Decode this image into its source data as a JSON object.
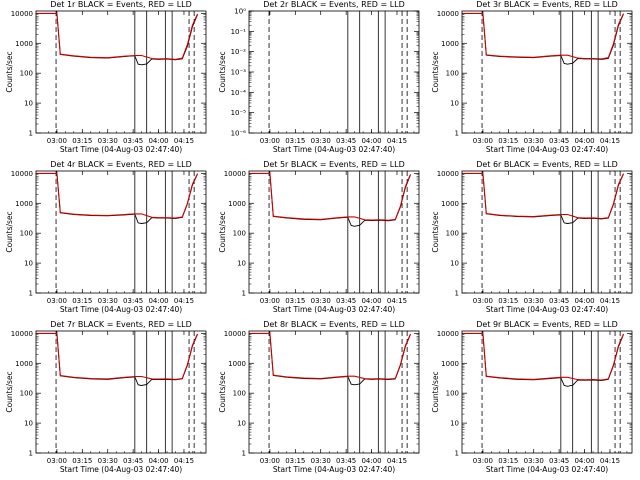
{
  "colors": {
    "events": "#000000",
    "lld": "#cc0000",
    "background": "#ffffff"
  },
  "chart_data": [
    {
      "type": "line",
      "title": "Det 1r BLACK = Events, RED = LLD",
      "xlabel": "Start Time (04-Aug-03 02:47:40)",
      "ylabel": "Counts/sec",
      "x_ticks": [
        "03:00",
        "03:15",
        "03:30",
        "03:45",
        "04:00",
        "04:15"
      ],
      "y_ticks": [
        "1",
        "10",
        "100",
        "1000",
        "10000"
      ],
      "y_scale": "log",
      "ylim": [
        1,
        12000
      ],
      "xlim": [
        "02:47:40",
        "04:28"
      ],
      "series": [
        {
          "name": "Events",
          "x": [
            "02:48",
            "03:00",
            "03:02",
            "03:10",
            "03:20",
            "03:30",
            "03:40",
            "03:46",
            "03:48",
            "03:50",
            "03:53",
            "03:56",
            "04:00",
            "04:05",
            "04:10",
            "04:14",
            "04:17",
            "04:20",
            "04:23"
          ],
          "y": [
            10000,
            10000,
            420,
            370,
            330,
            320,
            360,
            380,
            200,
            190,
            205,
            300,
            290,
            295,
            280,
            300,
            800,
            3500,
            9000
          ]
        },
        {
          "name": "LLD",
          "x": [
            "02:48",
            "03:00",
            "03:02",
            "03:10",
            "03:20",
            "03:30",
            "03:40",
            "03:46",
            "03:50",
            "03:56",
            "04:00",
            "04:05",
            "04:10",
            "04:14",
            "04:17",
            "04:20",
            "04:23"
          ],
          "y": [
            10000,
            10000,
            430,
            380,
            340,
            330,
            370,
            390,
            390,
            310,
            300,
            305,
            290,
            320,
            900,
            4000,
            9500
          ]
        }
      ]
    },
    {
      "type": "line",
      "title": "Det 2r BLACK = Events, RED = LLD",
      "xlabel": "Start Time (04-Aug-03 02:47:40)",
      "ylabel": "Counts/sec",
      "x_ticks": [
        "03:00",
        "03:15",
        "03:30",
        "03:45",
        "04:00",
        "04:15"
      ],
      "y_ticks": [
        "10⁰",
        "10⁻¹",
        "10⁻²",
        "10⁻³",
        "10⁻⁴",
        "10⁻⁵",
        "10⁻⁶"
      ],
      "y_scale": "log",
      "ylim": [
        1e-06,
        1
      ],
      "xlim": [
        "02:47:40",
        "04:28"
      ],
      "series": []
    },
    {
      "type": "line",
      "title": "Det 3r BLACK = Events, RED = LLD",
      "xlabel": "Start Time (04-Aug-03 02:47:40)",
      "ylabel": "Counts/sec",
      "x_ticks": [
        "03:00",
        "03:15",
        "03:30",
        "03:45",
        "04:00",
        "04:15"
      ],
      "y_ticks": [
        "1",
        "10",
        "100",
        "1000",
        "10000"
      ],
      "y_scale": "log",
      "ylim": [
        1,
        12000
      ],
      "xlim": [
        "02:47:40",
        "04:28"
      ],
      "series": [
        {
          "name": "Events",
          "x": [
            "02:48",
            "03:00",
            "03:02",
            "03:10",
            "03:20",
            "03:30",
            "03:40",
            "03:46",
            "03:48",
            "03:50",
            "03:53",
            "03:56",
            "04:00",
            "04:05",
            "04:10",
            "04:14",
            "04:17",
            "04:20",
            "04:23"
          ],
          "y": [
            10000,
            10000,
            400,
            360,
            340,
            330,
            370,
            390,
            210,
            200,
            215,
            310,
            300,
            300,
            290,
            310,
            850,
            3800,
            9500
          ]
        },
        {
          "name": "LLD",
          "x": [
            "02:48",
            "03:00",
            "03:02",
            "03:10",
            "03:20",
            "03:30",
            "03:40",
            "03:46",
            "03:50",
            "03:56",
            "04:00",
            "04:05",
            "04:10",
            "04:14",
            "04:17",
            "04:20",
            "04:23"
          ],
          "y": [
            10000,
            10000,
            410,
            370,
            350,
            340,
            380,
            400,
            400,
            320,
            310,
            310,
            300,
            330,
            950,
            4200,
            9800
          ]
        }
      ]
    },
    {
      "type": "line",
      "title": "Det 4r BLACK = Events, RED = LLD",
      "xlabel": "Start Time (04-Aug-03 02:47:40)",
      "ylabel": "Counts/sec",
      "x_ticks": [
        "03:00",
        "03:15",
        "03:30",
        "03:45",
        "04:00",
        "04:15"
      ],
      "y_ticks": [
        "1",
        "10",
        "100",
        "1000",
        "10000"
      ],
      "y_scale": "log",
      "ylim": [
        1,
        12000
      ],
      "xlim": [
        "02:47:40",
        "04:28"
      ],
      "series": [
        {
          "name": "Events",
          "x": [
            "02:48",
            "03:00",
            "03:02",
            "03:10",
            "03:20",
            "03:30",
            "03:40",
            "03:46",
            "03:48",
            "03:50",
            "03:53",
            "03:56",
            "04:00",
            "04:05",
            "04:10",
            "04:14",
            "04:17",
            "04:20",
            "04:23"
          ],
          "y": [
            10000,
            10000,
            480,
            420,
            390,
            380,
            410,
            430,
            220,
            210,
            225,
            330,
            320,
            320,
            310,
            340,
            950,
            4000,
            9500
          ]
        },
        {
          "name": "LLD",
          "x": [
            "02:48",
            "03:00",
            "03:02",
            "03:10",
            "03:20",
            "03:30",
            "03:40",
            "03:46",
            "03:50",
            "03:56",
            "04:00",
            "04:05",
            "04:10",
            "04:14",
            "04:17",
            "04:20",
            "04:23"
          ],
          "y": [
            10000,
            10000,
            490,
            430,
            400,
            390,
            420,
            440,
            440,
            340,
            330,
            330,
            320,
            350,
            1000,
            4300,
            9800
          ]
        }
      ]
    },
    {
      "type": "line",
      "title": "Det 5r BLACK = Events, RED = LLD",
      "xlabel": "Start Time (04-Aug-03 02:47:40)",
      "ylabel": "Counts/sec",
      "x_ticks": [
        "03:00",
        "03:15",
        "03:30",
        "03:45",
        "04:00",
        "04:15"
      ],
      "y_ticks": [
        "1",
        "10",
        "100",
        "1000",
        "10000"
      ],
      "y_scale": "log",
      "ylim": [
        1,
        12000
      ],
      "xlim": [
        "02:47:40",
        "04:28"
      ],
      "series": [
        {
          "name": "Events",
          "x": [
            "02:48",
            "03:00",
            "03:02",
            "03:10",
            "03:20",
            "03:30",
            "03:40",
            "03:46",
            "03:48",
            "03:50",
            "03:53",
            "03:56",
            "04:00",
            "04:05",
            "04:10",
            "04:14",
            "04:17",
            "04:20",
            "04:23"
          ],
          "y": [
            10000,
            10000,
            360,
            320,
            290,
            280,
            320,
            340,
            180,
            170,
            185,
            270,
            265,
            270,
            260,
            280,
            750,
            3300,
            9000
          ]
        },
        {
          "name": "LLD",
          "x": [
            "02:48",
            "03:00",
            "03:02",
            "03:10",
            "03:20",
            "03:30",
            "03:40",
            "03:46",
            "03:50",
            "03:56",
            "04:00",
            "04:05",
            "04:10",
            "04:14",
            "04:17",
            "04:20",
            "04:23"
          ],
          "y": [
            10000,
            10000,
            370,
            330,
            300,
            290,
            330,
            350,
            350,
            280,
            275,
            280,
            270,
            290,
            800,
            3600,
            9300
          ]
        }
      ]
    },
    {
      "type": "line",
      "title": "Det 6r BLACK = Events, RED = LLD",
      "xlabel": "Start Time (04-Aug-03 02:47:40)",
      "ylabel": "Counts/sec",
      "x_ticks": [
        "03:00",
        "03:15",
        "03:30",
        "03:45",
        "04:00",
        "04:15"
      ],
      "y_ticks": [
        "1",
        "10",
        "100",
        "1000",
        "10000"
      ],
      "y_scale": "log",
      "ylim": [
        1,
        12000
      ],
      "xlim": [
        "02:47:40",
        "04:28"
      ],
      "series": [
        {
          "name": "Events",
          "x": [
            "02:48",
            "03:00",
            "03:02",
            "03:10",
            "03:20",
            "03:30",
            "03:40",
            "03:46",
            "03:48",
            "03:50",
            "03:53",
            "03:56",
            "04:00",
            "04:05",
            "04:10",
            "04:14",
            "04:17",
            "04:20",
            "04:23"
          ],
          "y": [
            10000,
            10000,
            440,
            390,
            360,
            350,
            390,
            410,
            220,
            210,
            225,
            320,
            310,
            315,
            300,
            320,
            900,
            3900,
            9500
          ]
        },
        {
          "name": "LLD",
          "x": [
            "02:48",
            "03:00",
            "03:02",
            "03:10",
            "03:20",
            "03:30",
            "03:40",
            "03:46",
            "03:50",
            "03:56",
            "04:00",
            "04:05",
            "04:10",
            "04:14",
            "04:17",
            "04:20",
            "04:23"
          ],
          "y": [
            10000,
            10000,
            450,
            400,
            370,
            360,
            400,
            420,
            420,
            330,
            320,
            325,
            310,
            330,
            950,
            4200,
            9800
          ]
        }
      ]
    },
    {
      "type": "line",
      "title": "Det 7r BLACK = Events, RED = LLD",
      "xlabel": "Start Time (04-Aug-03 02:47:40)",
      "ylabel": "Counts/sec",
      "x_ticks": [
        "03:00",
        "03:15",
        "03:30",
        "03:45",
        "04:00",
        "04:15"
      ],
      "y_ticks": [
        "1",
        "10",
        "100",
        "1000",
        "10000"
      ],
      "y_scale": "log",
      "ylim": [
        1,
        12000
      ],
      "xlim": [
        "02:47:40",
        "04:28"
      ],
      "series": [
        {
          "name": "Events",
          "x": [
            "02:48",
            "03:00",
            "03:02",
            "03:10",
            "03:20",
            "03:30",
            "03:40",
            "03:46",
            "03:48",
            "03:50",
            "03:53",
            "03:56",
            "04:00",
            "04:05",
            "04:10",
            "04:14",
            "04:17",
            "04:20",
            "04:23"
          ],
          "y": [
            10000,
            10000,
            380,
            330,
            300,
            290,
            330,
            350,
            190,
            180,
            195,
            290,
            285,
            290,
            280,
            300,
            850,
            3700,
            9300
          ]
        },
        {
          "name": "LLD",
          "x": [
            "02:48",
            "03:00",
            "03:02",
            "03:10",
            "03:20",
            "03:30",
            "03:40",
            "03:46",
            "03:50",
            "03:56",
            "04:00",
            "04:05",
            "04:10",
            "04:14",
            "04:17",
            "04:20",
            "04:23"
          ],
          "y": [
            10000,
            10000,
            390,
            340,
            310,
            300,
            340,
            360,
            360,
            300,
            295,
            300,
            290,
            310,
            900,
            4000,
            9600
          ]
        }
      ]
    },
    {
      "type": "line",
      "title": "Det 8r BLACK = Events, RED = LLD",
      "xlabel": "Start Time (04-Aug-03 02:47:40)",
      "ylabel": "Counts/sec",
      "x_ticks": [
        "03:00",
        "03:15",
        "03:30",
        "03:45",
        "04:00",
        "04:15"
      ],
      "y_ticks": [
        "1",
        "10",
        "100",
        "1000",
        "10000"
      ],
      "y_scale": "log",
      "ylim": [
        1,
        12000
      ],
      "xlim": [
        "02:47:40",
        "04:28"
      ],
      "series": [
        {
          "name": "Events",
          "x": [
            "02:48",
            "03:00",
            "03:02",
            "03:10",
            "03:20",
            "03:30",
            "03:40",
            "03:46",
            "03:48",
            "03:50",
            "03:53",
            "03:56",
            "04:00",
            "04:05",
            "04:10",
            "04:14",
            "04:17",
            "04:20",
            "04:23"
          ],
          "y": [
            10000,
            10000,
            390,
            340,
            310,
            300,
            340,
            360,
            200,
            190,
            205,
            300,
            290,
            295,
            285,
            300,
            850,
            3600,
            9200
          ]
        },
        {
          "name": "LLD",
          "x": [
            "02:48",
            "03:00",
            "03:02",
            "03:10",
            "03:20",
            "03:30",
            "03:40",
            "03:46",
            "03:50",
            "03:56",
            "04:00",
            "04:05",
            "04:10",
            "04:14",
            "04:17",
            "04:20",
            "04:23"
          ],
          "y": [
            10000,
            10000,
            400,
            350,
            320,
            310,
            350,
            370,
            370,
            305,
            300,
            305,
            295,
            310,
            900,
            3900,
            9500
          ]
        }
      ]
    },
    {
      "type": "line",
      "title": "Det 9r BLACK = Events, RED = LLD",
      "xlabel": "Start Time (04-Aug-03 02:47:40)",
      "ylabel": "Counts/sec",
      "x_ticks": [
        "03:00",
        "03:15",
        "03:30",
        "03:45",
        "04:00",
        "04:15"
      ],
      "y_ticks": [
        "1",
        "10",
        "100",
        "1000",
        "10000"
      ],
      "y_scale": "log",
      "ylim": [
        1,
        12000
      ],
      "xlim": [
        "02:47:40",
        "04:28"
      ],
      "series": [
        {
          "name": "Events",
          "x": [
            "02:48",
            "03:00",
            "03:02",
            "03:10",
            "03:20",
            "03:30",
            "03:40",
            "03:46",
            "03:48",
            "03:50",
            "03:53",
            "03:56",
            "04:00",
            "04:05",
            "04:10",
            "04:14",
            "04:17",
            "04:20",
            "04:23"
          ],
          "y": [
            10000,
            10000,
            360,
            320,
            290,
            280,
            310,
            330,
            180,
            170,
            185,
            275,
            270,
            275,
            265,
            290,
            820,
            3500,
            9200
          ]
        },
        {
          "name": "LLD",
          "x": [
            "02:48",
            "03:00",
            "03:02",
            "03:10",
            "03:20",
            "03:30",
            "03:40",
            "03:46",
            "03:50",
            "03:56",
            "04:00",
            "04:05",
            "04:10",
            "04:14",
            "04:17",
            "04:20",
            "04:23"
          ],
          "y": [
            10000,
            10000,
            370,
            330,
            300,
            290,
            320,
            340,
            340,
            285,
            280,
            285,
            275,
            300,
            870,
            3800,
            9500
          ]
        }
      ]
    }
  ]
}
